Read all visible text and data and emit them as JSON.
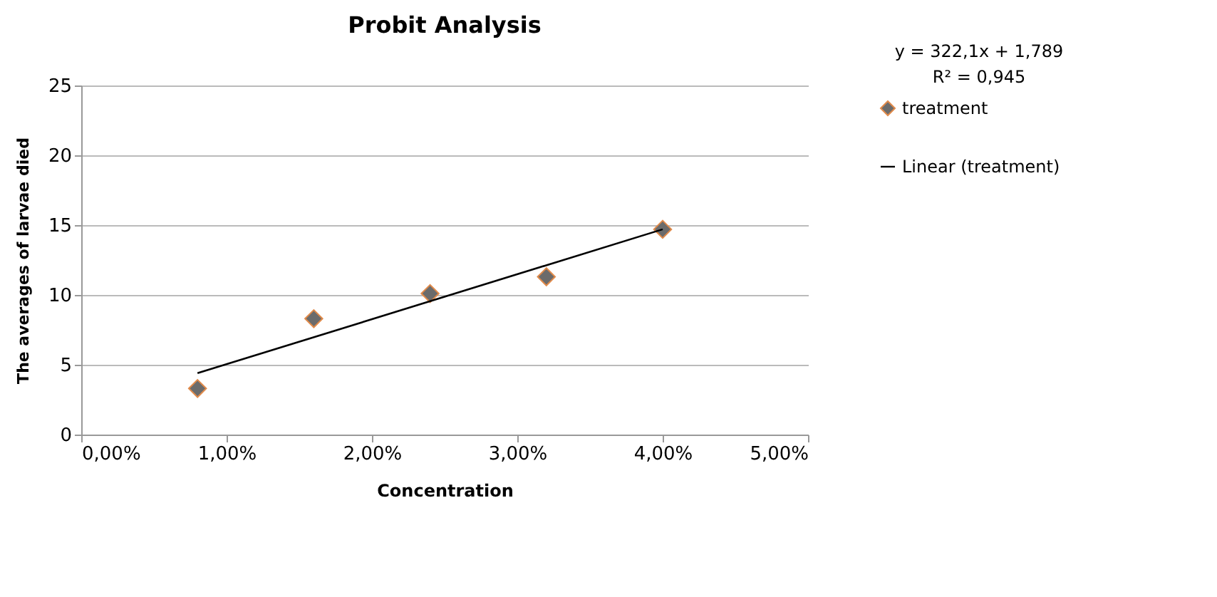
{
  "chart_data": {
    "type": "scatter",
    "title": "Probit Analysis",
    "xlabel": "Concentration",
    "ylabel": "The averages of larvae died",
    "series": [
      {
        "name": "treatment",
        "type": "scatter",
        "color": "#6b6b6b",
        "marker": "diamond",
        "x": [
          0.8,
          1.6,
          2.4,
          3.2,
          4.0
        ],
        "values": [
          3.3,
          8.3,
          10.1,
          11.3,
          14.7
        ]
      },
      {
        "name": "Linear (treatment)",
        "type": "line",
        "color": "#000000",
        "marker": "none",
        "line_style": "solid",
        "x": [
          0.8,
          4.0
        ],
        "values": [
          4.4,
          14.7
        ]
      }
    ],
    "xlim": [
      0,
      5
    ],
    "xticks": [
      {
        "value": 0,
        "label": "0,00%"
      },
      {
        "value": 1,
        "label": "1,00%"
      },
      {
        "value": 2,
        "label": "2,00%"
      },
      {
        "value": 3,
        "label": "3,00%"
      },
      {
        "value": 4,
        "label": "4,00%"
      },
      {
        "value": 5,
        "label": "5,00%"
      }
    ],
    "ylim": [
      0,
      25
    ],
    "yticks": [
      0,
      5,
      10,
      15,
      20,
      25
    ],
    "grid": "y",
    "legend": "right",
    "annotations": [
      "y = 322,1x + 1,789",
      "R² = 0,945"
    ]
  }
}
